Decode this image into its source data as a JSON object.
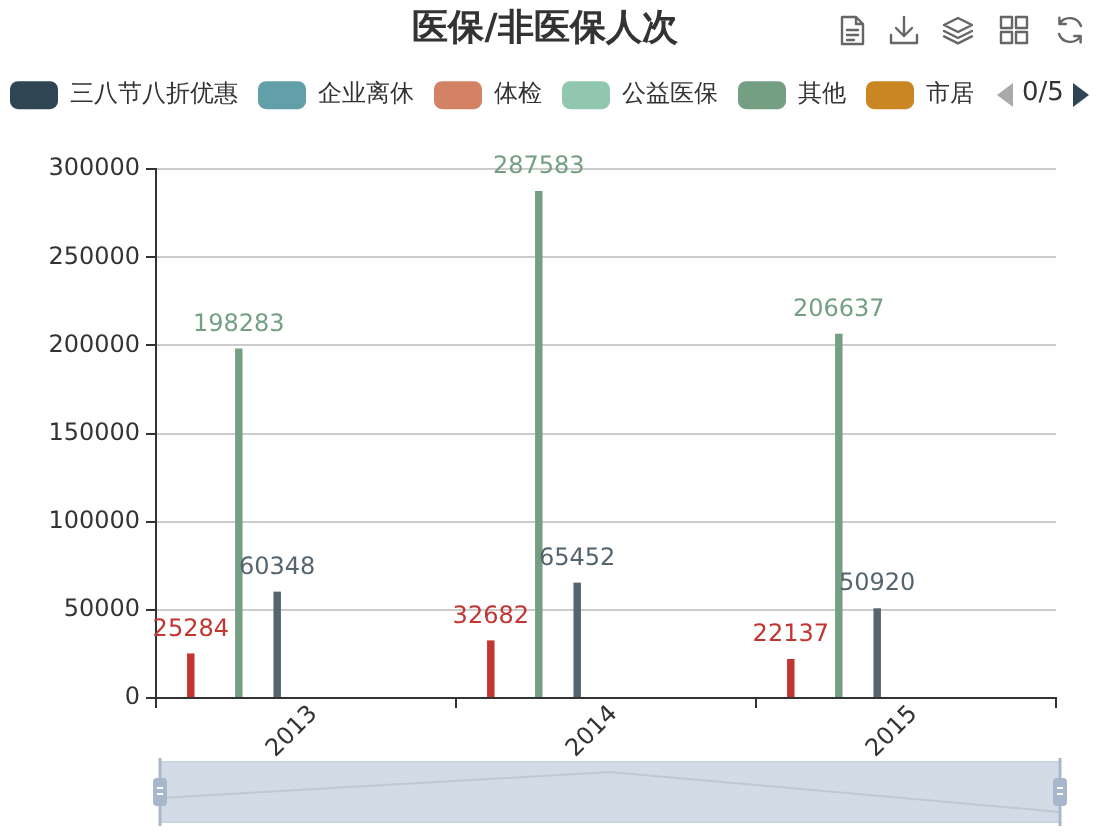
{
  "chart_data": {
    "type": "bar",
    "title": "医保/非医保人次",
    "categories": [
      "2013",
      "2014",
      "2015"
    ],
    "series": [
      {
        "color": "#c23531",
        "values": [
          25284,
          32682,
          22137
        ]
      },
      {
        "name": "三八节八折优惠",
        "color": "#2f4554",
        "values": [
          null,
          null,
          null
        ]
      },
      {
        "name": "企业离休",
        "color": "#61a0a8",
        "values": [
          null,
          null,
          null
        ]
      },
      {
        "name": "体检",
        "color": "#d48265",
        "values": [
          null,
          null,
          null
        ]
      },
      {
        "name": "公益医保",
        "color": "#91c7ae",
        "values": [
          null,
          null,
          null
        ]
      },
      {
        "name": "其他",
        "color": "#749f83",
        "values": [
          198283,
          287583,
          206637
        ]
      },
      {
        "name": "市居",
        "color": "#ca8622",
        "values": [
          null,
          null,
          null
        ]
      },
      {
        "values": [
          null,
          null,
          null
        ]
      },
      {
        "values": [
          null,
          null,
          null
        ]
      },
      {
        "color": "#546570",
        "values": [
          60348,
          65452,
          50920
        ]
      },
      {
        "values": [
          null,
          null,
          null
        ]
      },
      {
        "values": [
          null,
          null,
          null
        ]
      },
      {
        "values": [
          null,
          null,
          null
        ]
      },
      {
        "values": [
          null,
          null,
          null
        ]
      },
      {
        "values": [
          null,
          null,
          null
        ]
      },
      {
        "values": [
          null,
          null,
          null
        ]
      },
      {
        "values": [
          null,
          null,
          null
        ]
      },
      {
        "values": [
          null,
          null,
          null
        ]
      },
      {
        "values": [
          null,
          null,
          null
        ]
      },
      {
        "values": [
          null,
          null,
          null
        ]
      },
      {
        "values": [
          null,
          null,
          null
        ]
      },
      {
        "values": [
          null,
          null,
          null
        ]
      },
      {
        "values": [
          null,
          null,
          null
        ]
      },
      {
        "values": [
          null,
          null,
          null
        ]
      },
      {
        "values": [
          null,
          null,
          null
        ]
      }
    ],
    "ylim": [
      0,
      300000
    ],
    "yticks": [
      0,
      50000,
      100000,
      150000,
      200000,
      250000,
      300000
    ],
    "grid": "y",
    "legend": "top left",
    "data_labels": true,
    "annotations": [
      "0/5"
    ]
  }
}
